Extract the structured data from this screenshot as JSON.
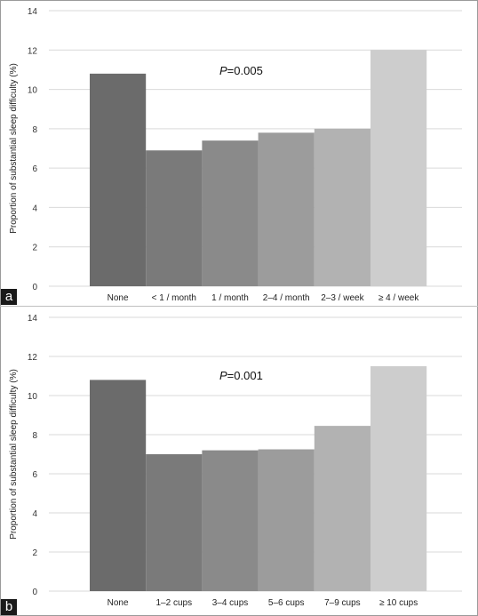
{
  "chart_data": [
    {
      "type": "bar",
      "panel_label": "a",
      "title": "",
      "annotation_prefix": "P",
      "annotation_suffix": "=0.005",
      "xlabel": "",
      "ylabel": "Proportion of substantial sleep difficulty (%)",
      "ylim": [
        0,
        14
      ],
      "yticks": [
        0,
        2,
        4,
        6,
        8,
        10,
        12,
        14
      ],
      "grid": true,
      "categories": [
        "None",
        "< 1 / month",
        "1 / month",
        "2–4 / month",
        "2–3 / week",
        "≥ 4 / week"
      ],
      "values": [
        10.8,
        6.9,
        7.4,
        7.8,
        8.0,
        12.0
      ],
      "colors": [
        "#6b6b6b",
        "#7a7a7a",
        "#8a8a8a",
        "#9c9c9c",
        "#b2b2b2",
        "#cdcdcd"
      ]
    },
    {
      "type": "bar",
      "panel_label": "b",
      "title": "",
      "annotation_prefix": "P",
      "annotation_suffix": "=0.001",
      "xlabel": "",
      "ylabel": "Proportion of substantial sleep difficulty (%)",
      "ylim": [
        0,
        14
      ],
      "yticks": [
        0,
        2,
        4,
        6,
        8,
        10,
        12,
        14
      ],
      "grid": true,
      "categories": [
        "None",
        "1–2 cups",
        "3–4 cups",
        "5–6 cups",
        "7–9 cups",
        "≥ 10 cups"
      ],
      "values": [
        10.8,
        7.0,
        7.2,
        7.25,
        8.45,
        11.5
      ],
      "colors": [
        "#6b6b6b",
        "#7a7a7a",
        "#8a8a8a",
        "#9c9c9c",
        "#b2b2b2",
        "#cdcdcd"
      ]
    }
  ]
}
